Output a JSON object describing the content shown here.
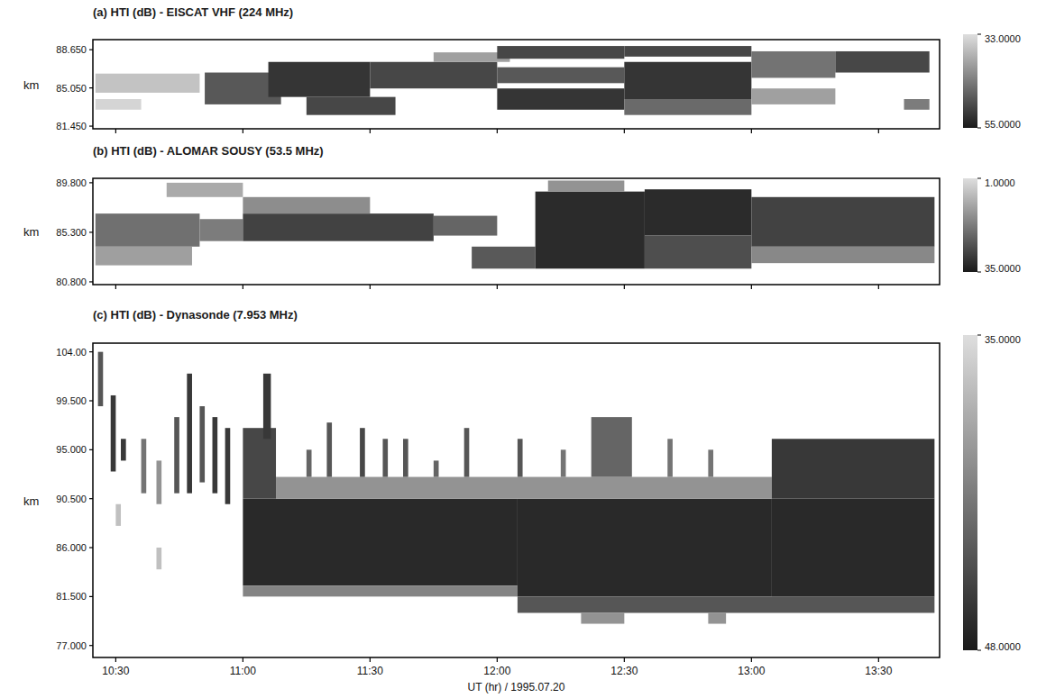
{
  "chart_data": [
    {
      "type": "heatmap",
      "title": "(a) HTI (dB) - EISCAT VHF (224 MHz)",
      "y_label": "km",
      "tick_labels": "y",
      "xlim": [
        10.41,
        13.74
      ],
      "xticks": [
        10.5,
        11,
        11.5,
        12,
        12.5,
        13,
        13.5
      ],
      "ylim": [
        81.2,
        89.6
      ],
      "yticks": [
        {
          "value": 81.45,
          "label": "81.450"
        },
        {
          "value": 85.05,
          "label": "85.050"
        },
        {
          "value": 88.65,
          "label": "88.650"
        }
      ],
      "colorbar": {
        "range": [
          33,
          55
        ],
        "ticks": [
          {
            "value": 33,
            "label": "33.0000"
          },
          {
            "value": 55,
            "label": "55.0000"
          }
        ]
      },
      "cells": [
        {
          "x0": 10.42,
          "x1": 10.83,
          "y0": 84.6,
          "y1": 86.4,
          "value": 36
        },
        {
          "x0": 10.42,
          "x1": 10.6,
          "y0": 83.0,
          "y1": 84.0,
          "value": 34
        },
        {
          "x0": 10.85,
          "x1": 11.15,
          "y0": 83.5,
          "y1": 86.5,
          "value": 48
        },
        {
          "x0": 11.1,
          "x1": 11.5,
          "y0": 84.2,
          "y1": 87.5,
          "value": 52
        },
        {
          "x0": 11.25,
          "x1": 11.6,
          "y0": 82.5,
          "y1": 84.2,
          "value": 50
        },
        {
          "x0": 11.5,
          "x1": 12.0,
          "y0": 85.0,
          "y1": 87.5,
          "value": 50
        },
        {
          "x0": 11.75,
          "x1": 12.05,
          "y0": 87.5,
          "y1": 88.4,
          "value": 40
        },
        {
          "x0": 12.0,
          "x1": 12.5,
          "y0": 87.8,
          "y1": 89.0,
          "value": 50
        },
        {
          "x0": 12.0,
          "x1": 12.5,
          "y0": 85.5,
          "y1": 87.0,
          "value": 48
        },
        {
          "x0": 12.0,
          "x1": 12.5,
          "y0": 83.0,
          "y1": 85.0,
          "value": 52
        },
        {
          "x0": 12.5,
          "x1": 13.0,
          "y0": 88.0,
          "y1": 89.0,
          "value": 50
        },
        {
          "x0": 12.5,
          "x1": 13.0,
          "y0": 84.0,
          "y1": 87.5,
          "value": 52
        },
        {
          "x0": 12.5,
          "x1": 13.0,
          "y0": 82.5,
          "y1": 84.0,
          "value": 46
        },
        {
          "x0": 13.0,
          "x1": 13.33,
          "y0": 86.0,
          "y1": 88.5,
          "value": 45
        },
        {
          "x0": 13.0,
          "x1": 13.33,
          "y0": 83.5,
          "y1": 85.0,
          "value": 40
        },
        {
          "x0": 13.33,
          "x1": 13.7,
          "y0": 86.5,
          "y1": 88.5,
          "value": 50
        },
        {
          "x0": 13.6,
          "x1": 13.7,
          "y0": 83.0,
          "y1": 84.0,
          "value": 44
        }
      ]
    },
    {
      "type": "heatmap",
      "title": "(b) HTI (dB) - ALOMAR SOUSY (53.5 MHz)",
      "y_label": "km",
      "tick_labels": "y",
      "xlim": [
        10.41,
        13.74
      ],
      "xticks": [
        10.5,
        11,
        11.5,
        12,
        12.5,
        13,
        13.5
      ],
      "ylim": [
        80.55,
        90.2
      ],
      "yticks": [
        {
          "value": 80.8,
          "label": "80.800"
        },
        {
          "value": 85.3,
          "label": "85.300"
        },
        {
          "value": 89.8,
          "label": "89.800"
        }
      ],
      "colorbar": {
        "range": [
          1,
          35
        ],
        "ticks": [
          {
            "value": 1,
            "label": "1.0000"
          },
          {
            "value": 35,
            "label": "35.0000"
          }
        ]
      },
      "cells": [
        {
          "x0": 10.42,
          "x1": 10.83,
          "y0": 84.0,
          "y1": 87.0,
          "value": 20
        },
        {
          "x0": 10.42,
          "x1": 10.8,
          "y0": 82.3,
          "y1": 84.0,
          "value": 12
        },
        {
          "x0": 10.7,
          "x1": 11.0,
          "y0": 88.5,
          "y1": 89.8,
          "value": 10
        },
        {
          "x0": 10.83,
          "x1": 11.0,
          "y0": 84.5,
          "y1": 86.5,
          "value": 18
        },
        {
          "x0": 11.0,
          "x1": 11.75,
          "y0": 84.5,
          "y1": 87.0,
          "value": 28
        },
        {
          "x0": 11.0,
          "x1": 11.5,
          "y0": 87.0,
          "y1": 88.5,
          "value": 15
        },
        {
          "x0": 11.75,
          "x1": 12.0,
          "y0": 85.0,
          "y1": 86.8,
          "value": 22
        },
        {
          "x0": 11.9,
          "x1": 12.15,
          "y0": 82.0,
          "y1": 84.0,
          "value": 24
        },
        {
          "x0": 12.15,
          "x1": 12.58,
          "y0": 82.0,
          "y1": 89.0,
          "value": 32
        },
        {
          "x0": 12.2,
          "x1": 12.5,
          "y0": 89.0,
          "y1": 90.0,
          "value": 14
        },
        {
          "x0": 12.58,
          "x1": 13.0,
          "y0": 85.0,
          "y1": 89.2,
          "value": 32
        },
        {
          "x0": 12.58,
          "x1": 13.0,
          "y0": 82.0,
          "y1": 85.0,
          "value": 26
        },
        {
          "x0": 13.0,
          "x1": 13.72,
          "y0": 84.0,
          "y1": 88.5,
          "value": 28
        },
        {
          "x0": 13.0,
          "x1": 13.72,
          "y0": 82.5,
          "y1": 84.0,
          "value": 16
        }
      ]
    },
    {
      "type": "heatmap",
      "title": "(c) HTI (dB) - Dynasonde (7.953 MHz)",
      "y_label": "km",
      "x_label": "UT (hr) / 1995.07.20",
      "xlim": [
        10.41,
        13.74
      ],
      "xticks": [
        {
          "value": 10.5,
          "label": "10:30"
        },
        {
          "value": 11,
          "label": "11:00"
        },
        {
          "value": 11.5,
          "label": "11:30"
        },
        {
          "value": 12,
          "label": "12:00"
        },
        {
          "value": 12.5,
          "label": "12:30"
        },
        {
          "value": 13,
          "label": "13:00"
        },
        {
          "value": 13.5,
          "label": "13:30"
        }
      ],
      "ylim": [
        75.9,
        104.8
      ],
      "yticks": [
        {
          "value": 77,
          "label": "77.000"
        },
        {
          "value": 81.5,
          "label": "81.500"
        },
        {
          "value": 86,
          "label": "86.000"
        },
        {
          "value": 90.5,
          "label": "90.500"
        },
        {
          "value": 95,
          "label": "95.000"
        },
        {
          "value": 99.5,
          "label": "99.500"
        },
        {
          "value": 104,
          "label": "104.00"
        }
      ],
      "colorbar": {
        "range": [
          35,
          48
        ],
        "ticks": [
          {
            "value": 35,
            "label": "35.0000"
          },
          {
            "value": 48,
            "label": "48.0000"
          }
        ]
      },
      "cells": [
        {
          "x0": 10.43,
          "x1": 10.45,
          "y0": 99,
          "y1": 104,
          "value": 44
        },
        {
          "x0": 10.48,
          "x1": 10.5,
          "y0": 93,
          "y1": 100,
          "value": 46
        },
        {
          "x0": 10.5,
          "x1": 10.52,
          "y0": 88,
          "y1": 90,
          "value": 37
        },
        {
          "x0": 10.52,
          "x1": 10.54,
          "y0": 94,
          "y1": 96,
          "value": 46
        },
        {
          "x0": 10.6,
          "x1": 10.62,
          "y0": 91,
          "y1": 96,
          "value": 42
        },
        {
          "x0": 10.66,
          "x1": 10.68,
          "y0": 90,
          "y1": 94,
          "value": 40
        },
        {
          "x0": 10.66,
          "x1": 10.68,
          "y0": 84,
          "y1": 86,
          "value": 37
        },
        {
          "x0": 10.73,
          "x1": 10.75,
          "y0": 91,
          "y1": 98,
          "value": 44
        },
        {
          "x0": 10.78,
          "x1": 10.8,
          "y0": 91,
          "y1": 102,
          "value": 46
        },
        {
          "x0": 10.83,
          "x1": 10.85,
          "y0": 92,
          "y1": 99,
          "value": 44
        },
        {
          "x0": 10.88,
          "x1": 10.9,
          "y0": 91,
          "y1": 98,
          "value": 46
        },
        {
          "x0": 10.93,
          "x1": 10.95,
          "y0": 90,
          "y1": 97,
          "value": 46
        },
        {
          "x0": 11.0,
          "x1": 12.08,
          "y0": 82.5,
          "y1": 90.5,
          "value": 47
        },
        {
          "x0": 11.0,
          "x1": 12.08,
          "y0": 81.5,
          "y1": 82.5,
          "value": 41
        },
        {
          "x0": 12.08,
          "x1": 13.08,
          "y0": 81.5,
          "y1": 90.5,
          "value": 47
        },
        {
          "x0": 12.08,
          "x1": 13.72,
          "y0": 80.0,
          "y1": 81.5,
          "value": 44
        },
        {
          "x0": 13.08,
          "x1": 13.72,
          "y0": 81.5,
          "y1": 90.5,
          "value": 47
        },
        {
          "x0": 11.0,
          "x1": 11.13,
          "y0": 90.5,
          "y1": 97,
          "value": 45
        },
        {
          "x0": 11.08,
          "x1": 11.11,
          "y0": 96,
          "y1": 102,
          "value": 46
        },
        {
          "x0": 11.13,
          "x1": 13.08,
          "y0": 90.5,
          "y1": 92.5,
          "value": 40
        },
        {
          "x0": 11.25,
          "x1": 11.27,
          "y0": 92.5,
          "y1": 95,
          "value": 43
        },
        {
          "x0": 11.33,
          "x1": 11.35,
          "y0": 92.5,
          "y1": 97.5,
          "value": 44
        },
        {
          "x0": 11.46,
          "x1": 11.48,
          "y0": 92.5,
          "y1": 97,
          "value": 45
        },
        {
          "x0": 11.55,
          "x1": 11.57,
          "y0": 92.5,
          "y1": 96,
          "value": 44
        },
        {
          "x0": 11.63,
          "x1": 11.65,
          "y0": 92.5,
          "y1": 96,
          "value": 44
        },
        {
          "x0": 11.75,
          "x1": 11.77,
          "y0": 92.5,
          "y1": 94,
          "value": 43
        },
        {
          "x0": 11.87,
          "x1": 11.89,
          "y0": 92.5,
          "y1": 97,
          "value": 44
        },
        {
          "x0": 12.08,
          "x1": 12.1,
          "y0": 92.5,
          "y1": 96,
          "value": 44
        },
        {
          "x0": 12.25,
          "x1": 12.27,
          "y0": 92.5,
          "y1": 95,
          "value": 42
        },
        {
          "x0": 12.37,
          "x1": 12.53,
          "y0": 92.5,
          "y1": 98,
          "value": 43
        },
        {
          "x0": 12.67,
          "x1": 12.69,
          "y0": 92.5,
          "y1": 96,
          "value": 42
        },
        {
          "x0": 12.83,
          "x1": 12.85,
          "y0": 92.5,
          "y1": 95,
          "value": 42
        },
        {
          "x0": 13.08,
          "x1": 13.72,
          "y0": 90.5,
          "y1": 96,
          "value": 46
        },
        {
          "x0": 12.33,
          "x1": 12.5,
          "y0": 79,
          "y1": 80,
          "value": 40
        },
        {
          "x0": 12.83,
          "x1": 12.9,
          "y0": 79,
          "y1": 80,
          "value": 40
        }
      ]
    }
  ]
}
